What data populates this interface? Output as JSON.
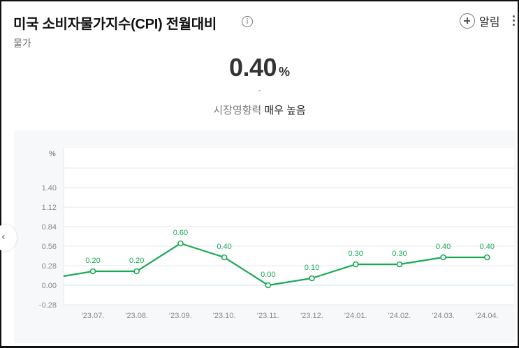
{
  "header": {
    "title": "미국 소비자물가지수(CPI) 전월대비",
    "info_icon": "info-icon",
    "category": "물가",
    "alarm_label": "알림"
  },
  "summary": {
    "value": "0.40",
    "unit": "%",
    "change": "-",
    "impact_label": "시장영향력",
    "impact_value": "매우 높음"
  },
  "colors": {
    "line": "#1aaa55",
    "grid": "#e6e8eb",
    "label": "#1aaa55"
  },
  "chart_data": {
    "type": "line",
    "ylabel": "%",
    "yticks": [
      "1.40",
      "1.12",
      "0.84",
      "0.56",
      "0.28",
      "0.00",
      "-0.28"
    ],
    "ytick_values": [
      1.4,
      1.12,
      0.84,
      0.56,
      0.28,
      0.0,
      -0.28
    ],
    "ylim": [
      -0.28,
      1.4
    ],
    "categories": [
      "'23.07.",
      "'23.08.",
      "'23.09.",
      "'23.10.",
      "'23.11.",
      "'23.12.",
      "'24.01.",
      "'24.02.",
      "'24.03.",
      "'24.04."
    ],
    "values": [
      0.2,
      0.2,
      0.6,
      0.4,
      0.0,
      0.1,
      0.3,
      0.3,
      0.4,
      0.4
    ],
    "labels": [
      "0.20",
      "0.20",
      "0.60",
      "0.40",
      "0.00",
      "0.10",
      "0.30",
      "0.30",
      "0.40",
      "0.40"
    ],
    "leading_value": 0.13,
    "grid": true
  }
}
